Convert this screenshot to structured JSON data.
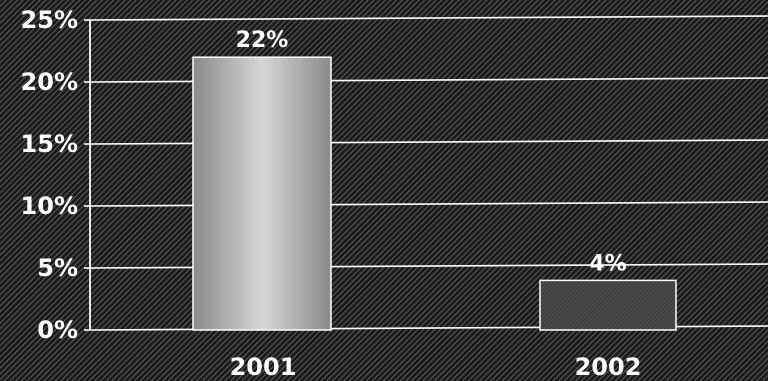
{
  "chart_data": {
    "type": "bar",
    "categories": [
      "2001",
      "2002"
    ],
    "values": [
      22,
      4
    ],
    "data_labels": [
      "22%",
      "4%"
    ],
    "yticks": [
      "0%",
      "5%",
      "10%",
      "15%",
      "20%",
      "25%"
    ],
    "ylim": [
      0,
      25
    ],
    "grid": true,
    "title": "",
    "xlabel": "",
    "ylabel": "",
    "colors": {
      "background": "#1a1a1a",
      "hatch": "#6e6e6e",
      "gridline": "#ffffff",
      "bar_2001_center": "#d6d6d6",
      "bar_2001_edge": "#8a8a8a",
      "bar_2002": "#4a4a4a",
      "text": "#ffffff"
    }
  }
}
